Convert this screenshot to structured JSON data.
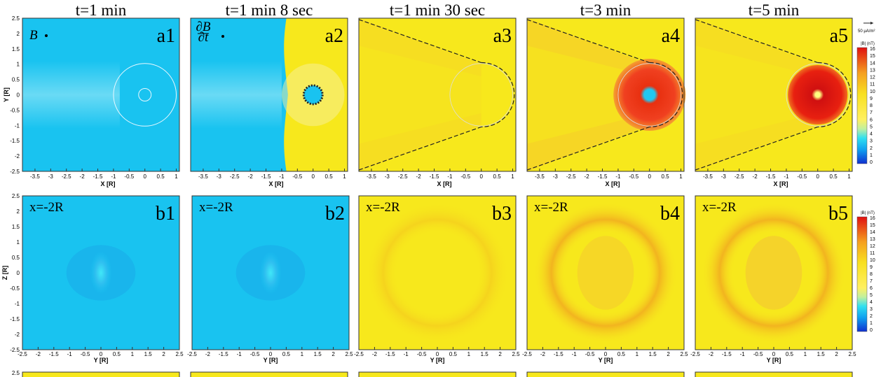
{
  "columns": [
    "t=1 min",
    "t=1 min 8 sec",
    "t=1 min 30 sec",
    "t=3 min",
    "t=5 min"
  ],
  "row_a": {
    "labels": [
      "a1",
      "a2",
      "a3",
      "a4",
      "a5"
    ],
    "x_label": "X [R]",
    "y_label": "Y [R]",
    "x_ticks": [
      -3.5,
      -3,
      -2.5,
      -2,
      -1.5,
      -1,
      -0.5,
      0,
      0.5,
      1
    ],
    "y_ticks": [
      2.5,
      2,
      1.5,
      1,
      0.5,
      0,
      -0.5,
      -1,
      -1.5,
      -2,
      -2.5
    ],
    "symbol_a1": "B",
    "symbol_a2_num": "∂B",
    "symbol_a2_den": "∂t"
  },
  "row_b": {
    "labels": [
      "b1",
      "b2",
      "b3",
      "b4",
      "b5"
    ],
    "annotation": "x=-2R",
    "x_label": "Y [R]",
    "y_label": "Z [R]",
    "x_ticks": [
      -2.5,
      -2,
      -1.5,
      -1,
      -0.5,
      0,
      0.5,
      1,
      1.5,
      2,
      2.5
    ],
    "y_ticks": [
      2.5,
      2,
      1.5,
      1,
      0.5,
      0,
      -0.5,
      -1,
      -1.5,
      -2,
      -2.5
    ]
  },
  "row_c": {
    "y_top_tick": 2.5
  },
  "colorbar": {
    "title": "|B| (nT)",
    "ticks": [
      16,
      15,
      14,
      13,
      12,
      11,
      10,
      9,
      8,
      7,
      6,
      5,
      4,
      3,
      2,
      1,
      0
    ]
  },
  "vector_scale": "50 μA/m²"
}
